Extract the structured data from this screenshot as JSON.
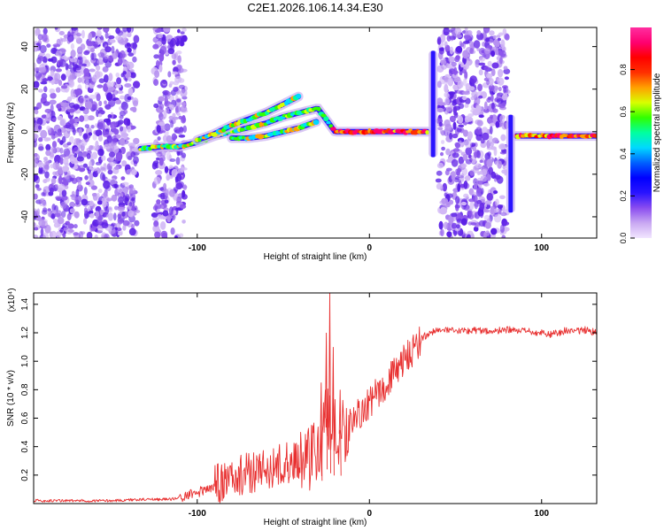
{
  "figure_title": "C2E1.2026.106.14.34.E30",
  "chart_data": [
    {
      "type": "heatmap",
      "title": "C2E1.2026.106.14.34.E30",
      "xlabel": "Height of straight line (km)",
      "ylabel": "Frequency (Hz)",
      "xlim": [
        -195,
        132
      ],
      "ylim": [
        -50,
        49
      ],
      "xticks": [
        -100,
        0,
        100
      ],
      "xtick_labels": [
        "-100",
        "0",
        "100"
      ],
      "yticks": [
        -40,
        -20,
        0,
        20,
        40
      ],
      "ytick_labels": [
        "-40",
        "-20",
        "0",
        "20",
        "40"
      ],
      "colorbar": {
        "label": "Normalized spectral amplitude",
        "range": [
          0,
          1
        ],
        "ticks": [
          0.0,
          0.2,
          0.4,
          0.6,
          0.8
        ],
        "tick_labels": [
          "0.0",
          "0.2",
          "0.4",
          "0.6",
          "0.8"
        ],
        "colors": [
          "#f2e6ff",
          "#c9a8f2",
          "#8a4df0",
          "#2a14ff",
          "#0000ff",
          "#0060ff",
          "#00d8ff",
          "#00ffa0",
          "#30ff00",
          "#d8ff00",
          "#ffa000",
          "#ff3000",
          "#ff0000",
          "#ff0070",
          "#ff2ea0"
        ]
      },
      "traces": [
        {
          "name": "main-ridge",
          "x": [
            -133,
            -120,
            -110,
            -100,
            -90,
            -80,
            -70,
            -60,
            -50,
            -40,
            -30,
            -20,
            -10,
            0,
            10,
            20,
            30,
            35
          ],
          "y": [
            -8,
            -7,
            -7,
            -5,
            -2,
            0,
            2,
            4,
            7,
            9,
            11,
            0,
            0,
            0,
            0,
            0,
            0,
            0
          ]
        },
        {
          "name": "upper-branch",
          "x": [
            -100,
            -90,
            -80,
            -70,
            -60,
            -50,
            -40
          ],
          "y": [
            -4,
            -1,
            3,
            6,
            9,
            13,
            17
          ]
        },
        {
          "name": "lower-branch",
          "x": [
            -80,
            -70,
            -60,
            -50,
            -40,
            -30
          ],
          "y": [
            -3,
            -3,
            -2,
            0,
            2,
            5
          ]
        },
        {
          "name": "right-ridge",
          "x": [
            85,
            95,
            105,
            115,
            125,
            132
          ],
          "y": [
            -2,
            -2,
            -2,
            -2,
            -2,
            -2
          ]
        }
      ],
      "noise_regions": [
        {
          "x": [
            -195,
            -135
          ],
          "y": [
            -50,
            49
          ]
        },
        {
          "x": [
            -125,
            -107
          ],
          "y": [
            -50,
            49
          ]
        },
        {
          "x": [
            40,
            80
          ],
          "y": [
            -50,
            49
          ]
        }
      ],
      "vertical_spikes": [
        {
          "x": 37,
          "y_range": [
            -12,
            38
          ]
        },
        {
          "x": 82,
          "y_range": [
            -38,
            8
          ]
        }
      ]
    },
    {
      "type": "line",
      "xlabel": "Height of straight line (km)",
      "ylabel": "SNR (10 * v/v)",
      "y_scale_label": "(x10⁴)",
      "xlim": [
        -195,
        132
      ],
      "ylim": [
        0,
        1.48
      ],
      "xticks": [
        -100,
        0,
        100
      ],
      "xtick_labels": [
        "-100",
        "0",
        "100"
      ],
      "yticks": [
        0.2,
        0.4,
        0.6,
        0.8,
        1.0,
        1.2,
        1.4
      ],
      "ytick_labels": [
        "0.2",
        "0.4",
        "0.6",
        "0.8",
        "1.0",
        "1.2",
        "1.4"
      ],
      "series": [
        {
          "name": "SNR",
          "color": "#e83030",
          "x": [
            -195,
            -170,
            -150,
            -130,
            -115,
            -105,
            -95,
            -85,
            -75,
            -65,
            -55,
            -45,
            -35,
            -28,
            -25,
            -22,
            -18,
            -14,
            -10,
            -5,
            0,
            5,
            10,
            15,
            20,
            25,
            30,
            35,
            40,
            50,
            60,
            70,
            80,
            90,
            100,
            105,
            110,
            115,
            120,
            125,
            132
          ],
          "y": [
            0.02,
            0.02,
            0.02,
            0.03,
            0.03,
            0.06,
            0.1,
            0.15,
            0.2,
            0.23,
            0.26,
            0.3,
            0.33,
            0.4,
            0.6,
            0.5,
            0.48,
            0.52,
            0.58,
            0.64,
            0.7,
            0.78,
            0.85,
            0.92,
            1.0,
            1.08,
            1.16,
            1.2,
            1.22,
            1.21,
            1.22,
            1.21,
            1.22,
            1.21,
            1.2,
            1.19,
            1.2,
            1.22,
            1.21,
            1.22,
            1.2
          ],
          "spikes": [
            {
              "x": -23,
              "y": 1.48
            },
            {
              "x": -25,
              "y": 1.2
            },
            {
              "x": -21,
              "y": 1.1
            },
            {
              "x": -28,
              "y": 0.85
            },
            {
              "x": -17,
              "y": 0.8
            }
          ],
          "noise_amplitude": [
            {
              "x_range": [
                -195,
                -110
              ],
              "amp": 0.01
            },
            {
              "x_range": [
                -110,
                -90
              ],
              "amp": 0.04
            },
            {
              "x_range": [
                -90,
                -40
              ],
              "amp": 0.15
            },
            {
              "x_range": [
                -40,
                -12
              ],
              "amp": 0.25
            },
            {
              "x_range": [
                -12,
                30
              ],
              "amp": 0.12
            },
            {
              "x_range": [
                30,
                132
              ],
              "amp": 0.025
            }
          ]
        }
      ]
    }
  ]
}
